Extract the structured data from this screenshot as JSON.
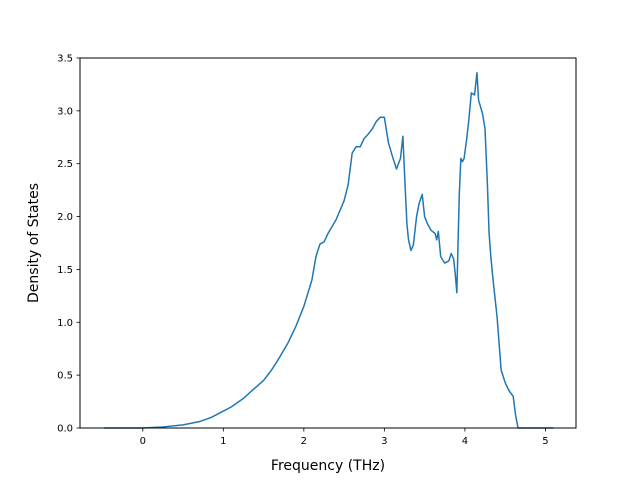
{
  "chart_data": {
    "type": "line",
    "title": "",
    "xlabel": "Frequency (THz)",
    "ylabel": "Density of States",
    "xlim": [
      -0.78,
      5.38
    ],
    "ylim": [
      0,
      3.5
    ],
    "xticks": [
      0,
      1,
      2,
      3,
      4,
      5
    ],
    "xtick_labels": [
      "0",
      "1",
      "2",
      "3",
      "4",
      "5"
    ],
    "yticks": [
      0.0,
      0.5,
      1.0,
      1.5,
      2.0,
      2.5,
      3.0,
      3.5
    ],
    "ytick_labels": [
      "0.0",
      "0.5",
      "1.0",
      "1.5",
      "2.0",
      "2.5",
      "3.0",
      "3.5"
    ],
    "grid": false,
    "legend": "none",
    "colors": {
      "line": "#1f77b4"
    },
    "series": [
      {
        "x": [
          -0.48,
          0.0,
          0.25,
          0.5,
          0.7,
          0.85,
          0.95,
          1.1,
          1.25,
          1.35,
          1.5,
          1.6,
          1.7,
          1.8,
          1.9,
          2.0,
          2.1,
          2.15,
          2.2,
          2.25,
          2.3,
          2.4,
          2.5,
          2.55,
          2.6,
          2.65,
          2.7,
          2.75,
          2.8,
          2.85,
          2.9,
          2.95,
          3.0,
          3.05,
          3.1,
          3.15,
          3.2,
          3.23,
          3.26,
          3.28,
          3.3,
          3.33,
          3.36,
          3.4,
          3.43,
          3.47,
          3.5,
          3.53,
          3.58,
          3.63,
          3.65,
          3.67,
          3.7,
          3.75,
          3.8,
          3.83,
          3.86,
          3.88,
          3.9,
          3.93,
          3.95,
          3.97,
          3.99,
          4.02,
          4.05,
          4.08,
          4.12,
          4.15,
          4.17,
          4.19,
          4.22,
          4.25,
          4.28,
          4.3,
          4.32,
          4.35,
          4.4,
          4.45,
          4.5,
          4.55,
          4.6,
          4.63,
          4.66,
          4.68,
          5.1
        ],
        "y": [
          0.0,
          0.0,
          0.01,
          0.03,
          0.06,
          0.1,
          0.14,
          0.2,
          0.28,
          0.35,
          0.45,
          0.55,
          0.67,
          0.8,
          0.96,
          1.15,
          1.4,
          1.62,
          1.74,
          1.76,
          1.84,
          1.97,
          2.15,
          2.3,
          2.6,
          2.66,
          2.66,
          2.74,
          2.78,
          2.83,
          2.9,
          2.94,
          2.94,
          2.7,
          2.57,
          2.45,
          2.55,
          2.76,
          2.25,
          1.93,
          1.78,
          1.68,
          1.73,
          2.0,
          2.12,
          2.21,
          2.0,
          1.94,
          1.87,
          1.84,
          1.78,
          1.86,
          1.62,
          1.56,
          1.58,
          1.65,
          1.6,
          1.46,
          1.28,
          2.2,
          2.55,
          2.52,
          2.55,
          2.72,
          2.92,
          3.17,
          3.15,
          3.36,
          3.1,
          3.05,
          2.97,
          2.83,
          2.3,
          1.85,
          1.64,
          1.4,
          1.05,
          0.55,
          0.43,
          0.35,
          0.3,
          0.12,
          0.0,
          0.0,
          0.0
        ]
      }
    ]
  }
}
